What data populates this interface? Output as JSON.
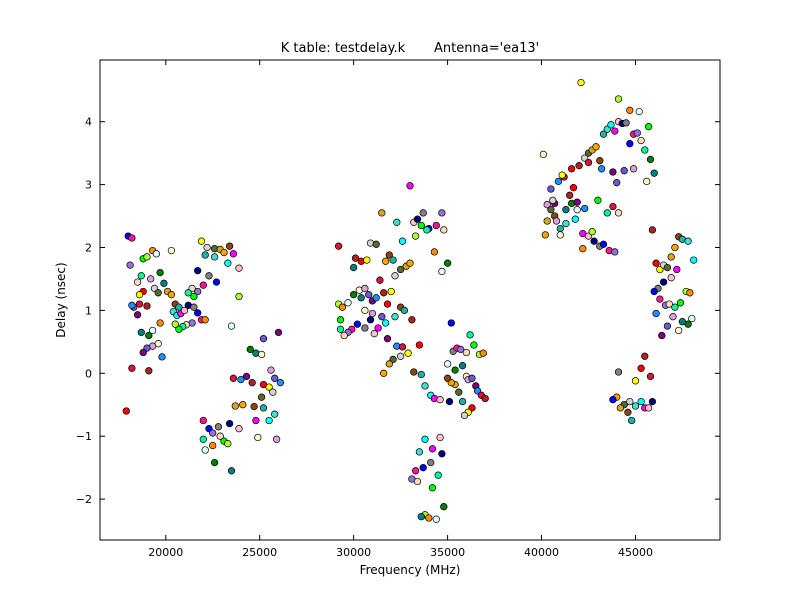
{
  "chart_data": {
    "type": "scatter",
    "title": "K table: testdelay.k       Antenna='ea13'",
    "xlabel": "Frequency (MHz)",
    "ylabel": "Delay (nsec)",
    "xlim": [
      16500,
      49500
    ],
    "ylim": [
      -2.65,
      4.98
    ],
    "xticks": [
      20000,
      25000,
      30000,
      35000,
      40000,
      45000
    ],
    "yticks": [
      -2,
      -1,
      0,
      1,
      2,
      3,
      4
    ],
    "grid": false,
    "legend": "none",
    "palette": [
      "#00ffff",
      "#ff0000",
      "#008000",
      "#0000ff",
      "#ffa500",
      "#800080",
      "#00ff00",
      "#ff00ff",
      "#ffff00",
      "#008080",
      "#ff1493",
      "#8b4513",
      "#1e90ff",
      "#adff2f",
      "#ffc0cb",
      "#d3d3d3",
      "#fffacd",
      "#9370db",
      "#20b2aa",
      "#dc143c",
      "#ff8c00",
      "#000080",
      "#556b2f",
      "#dda0dd",
      "#ffdab9",
      "#40e0d0",
      "#b22222",
      "#e0ffff",
      "#808080",
      "#daa520",
      "#6a5acd",
      "#00fa9a"
    ],
    "points": [
      [
        18000,
        2.18
      ],
      [
        18200,
        2.15
      ],
      [
        18100,
        1.72
      ],
      [
        18500,
        1.45
      ],
      [
        18700,
        1.55
      ],
      [
        18800,
        1.82
      ],
      [
        19000,
        1.85
      ],
      [
        19300,
        1.95
      ],
      [
        19500,
        1.9
      ],
      [
        19700,
        1.6
      ],
      [
        19900,
        1.43
      ],
      [
        20300,
        1.95
      ],
      [
        19200,
        1.5
      ],
      [
        18300,
        1.05
      ],
      [
        18500,
        0.93
      ],
      [
        18200,
        1.08
      ],
      [
        18600,
        1.1
      ],
      [
        19000,
        1.07
      ],
      [
        18800,
        1.3
      ],
      [
        18600,
        1.25
      ],
      [
        19400,
        1.35
      ],
      [
        19600,
        1.28
      ],
      [
        20100,
        1.3
      ],
      [
        20300,
        1.25
      ],
      [
        20500,
        1.1
      ],
      [
        20700,
        1.05
      ],
      [
        20400,
        0.98
      ],
      [
        20600,
        0.92
      ],
      [
        20800,
        0.95
      ],
      [
        21000,
        1.0
      ],
      [
        21200,
        1.08
      ],
      [
        21500,
        1.05
      ],
      [
        21700,
        0.96
      ],
      [
        21900,
        0.85
      ],
      [
        21400,
        0.8
      ],
      [
        21100,
        0.77
      ],
      [
        20900,
        0.74
      ],
      [
        20700,
        0.7
      ],
      [
        20500,
        0.78
      ],
      [
        19700,
        0.8
      ],
      [
        19300,
        0.68
      ],
      [
        19100,
        0.6
      ],
      [
        18700,
        0.65
      ],
      [
        19600,
        0.47
      ],
      [
        19300,
        0.43
      ],
      [
        19000,
        0.4
      ],
      [
        18800,
        0.33
      ],
      [
        19800,
        0.26
      ],
      [
        18200,
        0.08
      ],
      [
        19100,
        0.04
      ],
      [
        17900,
        -0.6
      ],
      [
        21900,
        2.1
      ],
      [
        22200,
        2.0
      ],
      [
        22600,
        1.98
      ],
      [
        22900,
        1.97
      ],
      [
        23100,
        1.92
      ],
      [
        23400,
        2.02
      ],
      [
        22100,
        1.88
      ],
      [
        22600,
        1.85
      ],
      [
        23300,
        1.75
      ],
      [
        23600,
        1.9
      ],
      [
        23900,
        1.67
      ],
      [
        21700,
        1.63
      ],
      [
        22300,
        1.55
      ],
      [
        22700,
        1.45
      ],
      [
        22000,
        1.4
      ],
      [
        21700,
        1.3
      ],
      [
        21400,
        1.35
      ],
      [
        21200,
        1.28
      ],
      [
        21500,
        1.22
      ],
      [
        23900,
        1.22
      ],
      [
        22100,
        0.85
      ],
      [
        23500,
        0.75
      ],
      [
        24500,
        0.38
      ],
      [
        24800,
        0.32
      ],
      [
        25100,
        0.3
      ],
      [
        25600,
        0.05
      ],
      [
        25800,
        -0.08
      ],
      [
        24300,
        -0.05
      ],
      [
        24000,
        -0.1
      ],
      [
        23600,
        -0.08
      ],
      [
        24600,
        -0.15
      ],
      [
        25200,
        -0.18
      ],
      [
        25500,
        -0.22
      ],
      [
        25700,
        -0.3
      ],
      [
        25100,
        -0.38
      ],
      [
        23700,
        -0.52
      ],
      [
        24100,
        -0.5
      ],
      [
        24700,
        -0.53
      ],
      [
        25200,
        -0.55
      ],
      [
        25800,
        -0.65
      ],
      [
        25500,
        -0.75
      ],
      [
        24800,
        -0.75
      ],
      [
        23900,
        -0.88
      ],
      [
        23400,
        -0.8
      ],
      [
        22800,
        -0.85
      ],
      [
        22300,
        -0.88
      ],
      [
        22000,
        -0.75
      ],
      [
        22500,
        -0.95
      ],
      [
        22900,
        -1.0
      ],
      [
        22000,
        -1.05
      ],
      [
        23100,
        -1.08
      ],
      [
        23300,
        -1.12
      ],
      [
        22500,
        -1.15
      ],
      [
        22100,
        -1.22
      ],
      [
        22600,
        -1.42
      ],
      [
        23500,
        -1.55
      ],
      [
        24900,
        -1.02
      ],
      [
        25900,
        -1.05
      ],
      [
        25200,
        0.55
      ],
      [
        26000,
        0.65
      ],
      [
        26100,
        -0.15
      ],
      [
        29200,
        2.02
      ],
      [
        30100,
        1.83
      ],
      [
        30400,
        1.78
      ],
      [
        30700,
        1.8
      ],
      [
        30900,
        2.07
      ],
      [
        31200,
        2.05
      ],
      [
        31500,
        2.55
      ],
      [
        31700,
        1.78
      ],
      [
        31900,
        1.88
      ],
      [
        32100,
        1.8
      ],
      [
        32300,
        2.4
      ],
      [
        32600,
        2.1
      ],
      [
        33000,
        2.98
      ],
      [
        33200,
        2.4
      ],
      [
        33400,
        2.45
      ],
      [
        33700,
        2.55
      ],
      [
        34000,
        2.3
      ],
      [
        34400,
        2.35
      ],
      [
        34700,
        2.55
      ],
      [
        34800,
        2.28
      ],
      [
        33900,
        2.28
      ],
      [
        33600,
        2.35
      ],
      [
        33300,
        2.18
      ],
      [
        34300,
        1.93
      ],
      [
        34700,
        1.62
      ],
      [
        35000,
        1.75
      ],
      [
        30000,
        1.68
      ],
      [
        30300,
        1.32
      ],
      [
        30600,
        1.35
      ],
      [
        30800,
        1.25
      ],
      [
        31000,
        1.15
      ],
      [
        31200,
        1.2
      ],
      [
        31400,
        1.48
      ],
      [
        31600,
        1.28
      ],
      [
        31800,
        1.1
      ],
      [
        32000,
        1.3
      ],
      [
        32200,
        1.55
      ],
      [
        32500,
        1.65
      ],
      [
        32800,
        1.7
      ],
      [
        33000,
        1.75
      ],
      [
        32500,
        1.05
      ],
      [
        32700,
        1.0
      ],
      [
        32200,
        0.9
      ],
      [
        31700,
        0.8
      ],
      [
        31300,
        0.72
      ],
      [
        31100,
        0.63
      ],
      [
        30900,
        0.85
      ],
      [
        30600,
        0.72
      ],
      [
        30200,
        0.78
      ],
      [
        29900,
        0.7
      ],
      [
        29700,
        0.65
      ],
      [
        29500,
        0.6
      ],
      [
        29300,
        0.7
      ],
      [
        29300,
        0.85
      ],
      [
        29200,
        1.1
      ],
      [
        29400,
        1.05
      ],
      [
        29700,
        1.12
      ],
      [
        30000,
        1.25
      ],
      [
        30400,
        1.2
      ],
      [
        30600,
        1.0
      ],
      [
        31000,
        0.95
      ],
      [
        31500,
        0.9
      ],
      [
        31800,
        0.55
      ],
      [
        32300,
        0.43
      ],
      [
        32600,
        0.42
      ],
      [
        33100,
        0.85
      ],
      [
        33500,
        0.45
      ],
      [
        32900,
        0.32
      ],
      [
        32500,
        0.27
      ],
      [
        32100,
        0.22
      ],
      [
        31900,
        0.15
      ],
      [
        31600,
        0.0
      ],
      [
        33200,
        0.02
      ],
      [
        33600,
        -0.02
      ],
      [
        33800,
        -0.2
      ],
      [
        34100,
        -0.35
      ],
      [
        34300,
        -0.4
      ],
      [
        34600,
        -0.42
      ],
      [
        35100,
        -0.45
      ],
      [
        35300,
        0.35
      ],
      [
        35200,
        0.8
      ],
      [
        35500,
        0.4
      ],
      [
        35700,
        0.38
      ],
      [
        36000,
        0.33
      ],
      [
        36200,
        0.61
      ],
      [
        36400,
        0.45
      ],
      [
        36700,
        0.3
      ],
      [
        36900,
        0.32
      ],
      [
        35000,
        0.15
      ],
      [
        35400,
        0.05
      ],
      [
        35800,
        0.12
      ],
      [
        36000,
        -0.05
      ],
      [
        36100,
        -0.1
      ],
      [
        36300,
        -0.08
      ],
      [
        36500,
        -0.2
      ],
      [
        36600,
        -0.28
      ],
      [
        36800,
        -0.35
      ],
      [
        37000,
        -0.4
      ],
      [
        36300,
        -0.55
      ],
      [
        36100,
        -0.62
      ],
      [
        35900,
        -0.67
      ],
      [
        35600,
        -0.3
      ],
      [
        35400,
        -0.18
      ],
      [
        35200,
        -0.15
      ],
      [
        35000,
        -0.08
      ],
      [
        35800,
        -0.45
      ],
      [
        33500,
        -1.25
      ],
      [
        33800,
        -1.05
      ],
      [
        34200,
        -1.2
      ],
      [
        34600,
        -1.02
      ],
      [
        34700,
        -1.28
      ],
      [
        34100,
        -1.42
      ],
      [
        33700,
        -1.5
      ],
      [
        33300,
        -1.55
      ],
      [
        33100,
        -1.68
      ],
      [
        33400,
        -1.72
      ],
      [
        34500,
        -1.62
      ],
      [
        34200,
        -1.82
      ],
      [
        33800,
        -2.25
      ],
      [
        34000,
        -2.3
      ],
      [
        34400,
        -2.32
      ],
      [
        34800,
        -2.12
      ],
      [
        33600,
        -2.28
      ],
      [
        40100,
        3.48
      ],
      [
        40300,
        2.68
      ],
      [
        40500,
        2.93
      ],
      [
        40700,
        2.7
      ],
      [
        40900,
        3.05
      ],
      [
        41200,
        3.12
      ],
      [
        41500,
        2.83
      ],
      [
        41700,
        2.95
      ],
      [
        42100,
        4.62
      ],
      [
        42300,
        3.42
      ],
      [
        42500,
        3.5
      ],
      [
        42700,
        3.55
      ],
      [
        42900,
        3.6
      ],
      [
        43100,
        3.38
      ],
      [
        43300,
        3.8
      ],
      [
        43500,
        3.88
      ],
      [
        43700,
        3.95
      ],
      [
        43900,
        3.85
      ],
      [
        44100,
        4.0
      ],
      [
        44300,
        3.97
      ],
      [
        44500,
        3.98
      ],
      [
        44700,
        3.65
      ],
      [
        44900,
        3.8
      ],
      [
        45100,
        3.82
      ],
      [
        45300,
        3.7
      ],
      [
        45500,
        3.55
      ],
      [
        45700,
        3.92
      ],
      [
        44100,
        4.36
      ],
      [
        44700,
        4.18
      ],
      [
        45200,
        4.16
      ],
      [
        45800,
        3.4
      ],
      [
        46000,
        3.18
      ],
      [
        45600,
        3.05
      ],
      [
        44900,
        3.25
      ],
      [
        44400,
        3.22
      ],
      [
        43800,
        3.2
      ],
      [
        43200,
        3.25
      ],
      [
        42500,
        3.35
      ],
      [
        42000,
        3.3
      ],
      [
        41600,
        3.25
      ],
      [
        41100,
        3.15
      ],
      [
        40600,
        2.75
      ],
      [
        40500,
        2.6
      ],
      [
        40300,
        2.42
      ],
      [
        40200,
        2.2
      ],
      [
        40700,
        2.5
      ],
      [
        41000,
        2.3
      ],
      [
        41300,
        2.38
      ],
      [
        41800,
        2.45
      ],
      [
        42200,
        2.22
      ],
      [
        42500,
        2.18
      ],
      [
        42800,
        2.1
      ],
      [
        43100,
        2.02
      ],
      [
        43300,
        2.05
      ],
      [
        43600,
        1.95
      ],
      [
        43900,
        1.93
      ],
      [
        44100,
        2.55
      ],
      [
        43500,
        2.55
      ],
      [
        43000,
        2.75
      ],
      [
        42700,
        2.25
      ],
      [
        42200,
        1.98
      ],
      [
        41900,
        2.6
      ],
      [
        41600,
        2.7
      ],
      [
        41300,
        2.6
      ],
      [
        41000,
        2.2
      ],
      [
        40800,
        2.42
      ],
      [
        44000,
        3.03
      ],
      [
        41900,
        2.72
      ],
      [
        42300,
        2.62
      ],
      [
        43800,
        2.65
      ],
      [
        45900,
        2.28
      ],
      [
        46100,
        1.75
      ],
      [
        46300,
        1.65
      ],
      [
        46500,
        1.72
      ],
      [
        46700,
        1.68
      ],
      [
        46900,
        1.85
      ],
      [
        47100,
        2.0
      ],
      [
        47300,
        2.17
      ],
      [
        47500,
        2.13
      ],
      [
        47800,
        2.1
      ],
      [
        48100,
        1.8
      ],
      [
        47200,
        1.65
      ],
      [
        46900,
        1.52
      ],
      [
        46500,
        1.45
      ],
      [
        46200,
        1.35
      ],
      [
        46000,
        1.3
      ],
      [
        46300,
        1.18
      ],
      [
        46600,
        1.08
      ],
      [
        46800,
        1.1
      ],
      [
        47100,
        1.05
      ],
      [
        47400,
        1.12
      ],
      [
        47700,
        1.3
      ],
      [
        47900,
        1.28
      ],
      [
        48000,
        0.87
      ],
      [
        47800,
        0.78
      ],
      [
        47500,
        0.82
      ],
      [
        47300,
        0.68
      ],
      [
        47000,
        0.9
      ],
      [
        46700,
        0.75
      ],
      [
        46400,
        0.6
      ],
      [
        46100,
        0.95
      ],
      [
        45800,
        -0.05
      ],
      [
        45500,
        0.27
      ],
      [
        45300,
        0.08
      ],
      [
        45000,
        -0.12
      ],
      [
        44700,
        -0.45
      ],
      [
        44400,
        -0.5
      ],
      [
        44200,
        -0.55
      ],
      [
        44000,
        -0.38
      ],
      [
        44600,
        -0.62
      ],
      [
        44800,
        -0.75
      ],
      [
        45000,
        -0.52
      ],
      [
        45300,
        -0.45
      ],
      [
        45500,
        -0.55
      ],
      [
        45700,
        -0.55
      ],
      [
        45900,
        -0.45
      ],
      [
        44100,
        0.02
      ],
      [
        43800,
        -0.42
      ]
    ]
  }
}
